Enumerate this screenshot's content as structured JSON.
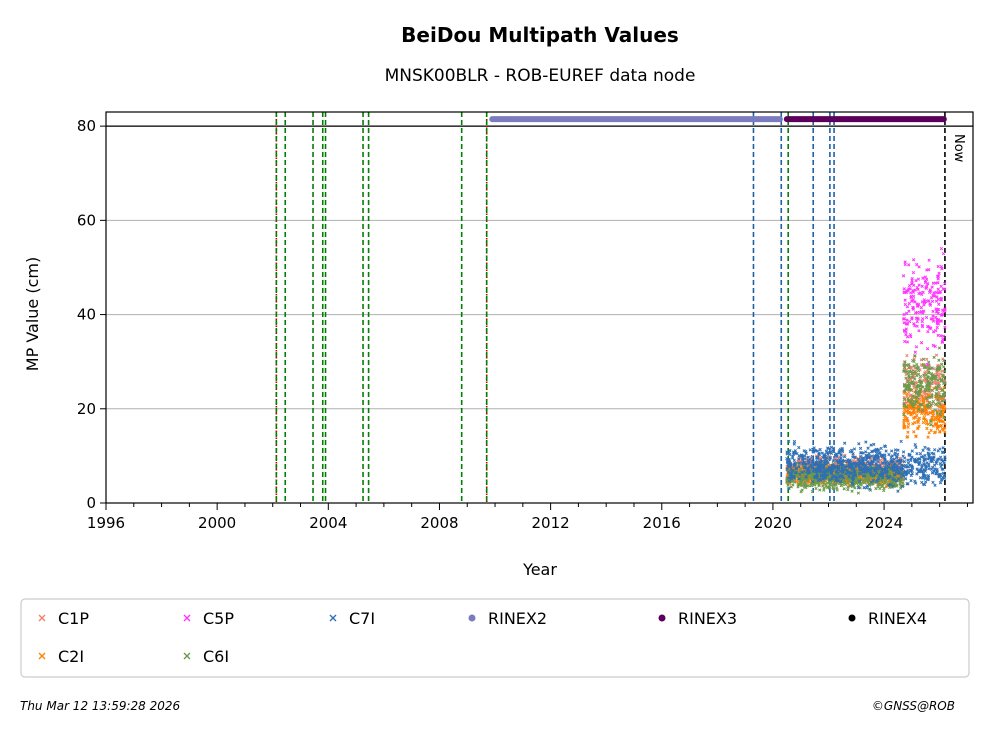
{
  "chart_data": {
    "type": "scatter",
    "title": "BeiDou Multipath Values",
    "subtitle": "MNSK00BLR - ROB-EUREF data node",
    "xlabel": "Year",
    "ylabel": "MP Value (cm)",
    "xlim": [
      1996,
      2027.2
    ],
    "ylim": [
      0,
      83
    ],
    "x_ticks": [
      1996,
      2000,
      2004,
      2008,
      2012,
      2016,
      2020,
      2024
    ],
    "y_ticks": [
      0,
      20,
      40,
      60,
      80
    ],
    "grid": "horizontal",
    "reference_line_y": 80,
    "now": {
      "x": 2026.19,
      "label": "Now"
    },
    "event_lines": [
      {
        "x": 2002.13,
        "color": "#cc0000",
        "style": "dotted"
      },
      {
        "x": 2002.13,
        "color": "#008000",
        "style": "dashed"
      },
      {
        "x": 2002.45,
        "color": "#008000",
        "style": "dashed"
      },
      {
        "x": 2003.45,
        "color": "#008000",
        "style": "dashed"
      },
      {
        "x": 2003.8,
        "color": "#008000",
        "style": "dashed"
      },
      {
        "x": 2003.9,
        "color": "#008000",
        "style": "dashed"
      },
      {
        "x": 2005.25,
        "color": "#008000",
        "style": "dashed"
      },
      {
        "x": 2005.45,
        "color": "#008000",
        "style": "dashed"
      },
      {
        "x": 2008.8,
        "color": "#008000",
        "style": "dashed"
      },
      {
        "x": 2009.7,
        "color": "#cc0000",
        "style": "dotted"
      },
      {
        "x": 2009.7,
        "color": "#008000",
        "style": "dashed"
      },
      {
        "x": 2019.3,
        "color": "#1f5fa6",
        "style": "dashed"
      },
      {
        "x": 2020.3,
        "color": "#1f5fa6",
        "style": "dashed"
      },
      {
        "x": 2020.55,
        "color": "#008000",
        "style": "dashed"
      },
      {
        "x": 2021.45,
        "color": "#1f5fa6",
        "style": "dashed"
      },
      {
        "x": 2022.05,
        "color": "#1f5fa6",
        "style": "dashed"
      },
      {
        "x": 2022.2,
        "color": "#1f5fa6",
        "style": "dashed"
      }
    ],
    "rinex_bars": [
      {
        "name": "RINEX2",
        "x_start": 2009.9,
        "x_end": 2020.25,
        "y": 81.5,
        "color": "#7b7bbf"
      },
      {
        "name": "RINEX3",
        "x_start": 2020.5,
        "x_end": 2026.15,
        "y": 81.5,
        "color": "#5c005c"
      }
    ],
    "series": [
      {
        "name": "C1P",
        "marker": "x",
        "color": "#f08070",
        "segments": [
          {
            "x_start": 2020.5,
            "x_end": 2024.7,
            "y_mean": 7,
            "spread": 2
          },
          {
            "x_start": 2024.7,
            "x_end": 2026.2,
            "y_mean": 24,
            "spread": 5
          }
        ]
      },
      {
        "name": "C2I",
        "marker": "x",
        "color": "#ff8000",
        "segments": [
          {
            "x_start": 2020.5,
            "x_end": 2024.7,
            "y_mean": 6,
            "spread": 1.5
          },
          {
            "x_start": 2024.7,
            "x_end": 2026.2,
            "y_mean": 19,
            "spread": 3.5
          }
        ]
      },
      {
        "name": "C5P",
        "marker": "x",
        "color": "#ff33ff",
        "segments": [
          {
            "x_start": 2024.7,
            "x_end": 2026.2,
            "y_mean": 42,
            "spread": 7
          }
        ]
      },
      {
        "name": "C6I",
        "marker": "x",
        "color": "#6a9a4a",
        "segments": [
          {
            "x_start": 2020.5,
            "x_end": 2024.7,
            "y_mean": 5.5,
            "spread": 2
          },
          {
            "x_start": 2024.7,
            "x_end": 2026.2,
            "y_mean": 25,
            "spread": 5
          }
        ]
      },
      {
        "name": "C7I",
        "marker": "x",
        "color": "#2e6fb5",
        "segments": [
          {
            "x_start": 2020.5,
            "x_end": 2026.2,
            "y_mean": 8,
            "spread": 3
          }
        ]
      },
      {
        "name": "RINEX2",
        "marker": "dot",
        "color": "#7b7bbf",
        "segments": []
      },
      {
        "name": "RINEX3",
        "marker": "dot",
        "color": "#5c005c",
        "segments": []
      },
      {
        "name": "RINEX4",
        "marker": "dot",
        "color": "#000000",
        "segments": []
      }
    ],
    "legend": {
      "placement": "bottom",
      "entries": [
        {
          "label": "C1P",
          "color": "#f08070",
          "marker": "x"
        },
        {
          "label": "C5P",
          "color": "#ff33ff",
          "marker": "x"
        },
        {
          "label": "C7I",
          "color": "#2e6fb5",
          "marker": "x"
        },
        {
          "label": "RINEX2",
          "color": "#7b7bbf",
          "marker": "dot"
        },
        {
          "label": "RINEX3",
          "color": "#5c005c",
          "marker": "dot"
        },
        {
          "label": "RINEX4",
          "color": "#000000",
          "marker": "dot"
        },
        {
          "label": "C2I",
          "color": "#ff8000",
          "marker": "x"
        },
        {
          "label": "C6I",
          "color": "#6a9a4a",
          "marker": "x"
        }
      ]
    }
  },
  "footer": {
    "timestamp": "Thu Mar 12 13:59:28 2026",
    "credit": "©GNSS@ROB"
  }
}
